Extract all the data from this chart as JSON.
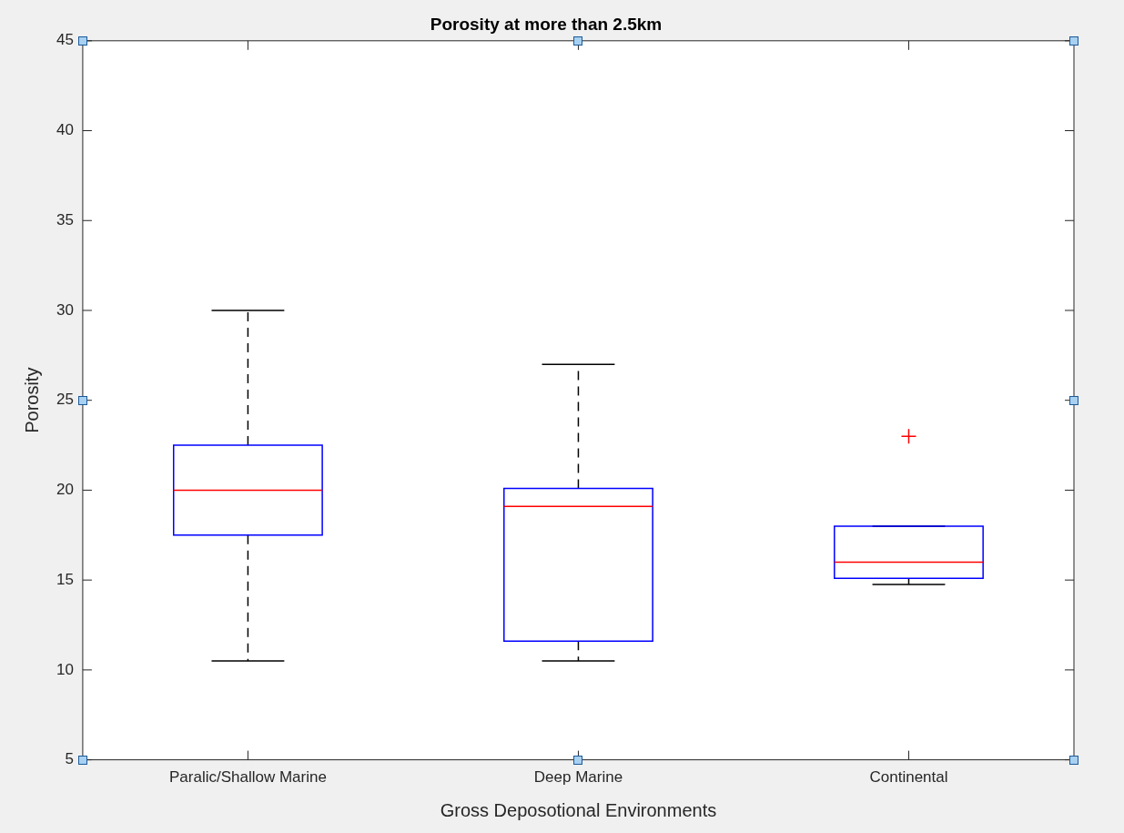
{
  "chart_data": {
    "type": "box",
    "title": "Porosity at more than 2.5km",
    "xlabel": "Gross Deposotional Environments",
    "ylabel": "Porosity",
    "categories": [
      "Paralic/Shallow Marine",
      "Deep Marine",
      "Continental"
    ],
    "series": [
      {
        "color": "#0000ff",
        "boxes": [
          {
            "low": 10.5,
            "q1": 17.5,
            "median": 20,
            "q3": 22.5,
            "high": 30
          },
          {
            "low": 10.5,
            "q1": 11.6,
            "median": 19.1,
            "q3": 20.1,
            "high": 27
          },
          {
            "low": 14.75,
            "q1": 15.1,
            "median": 16,
            "q3": 18,
            "high": 18,
            "outliers": [
              23
            ]
          }
        ]
      }
    ],
    "ylim": [
      5,
      45
    ],
    "yticks": [
      5,
      10,
      15,
      20,
      25,
      30,
      35,
      40,
      45
    ],
    "grid": false,
    "legend": false
  }
}
